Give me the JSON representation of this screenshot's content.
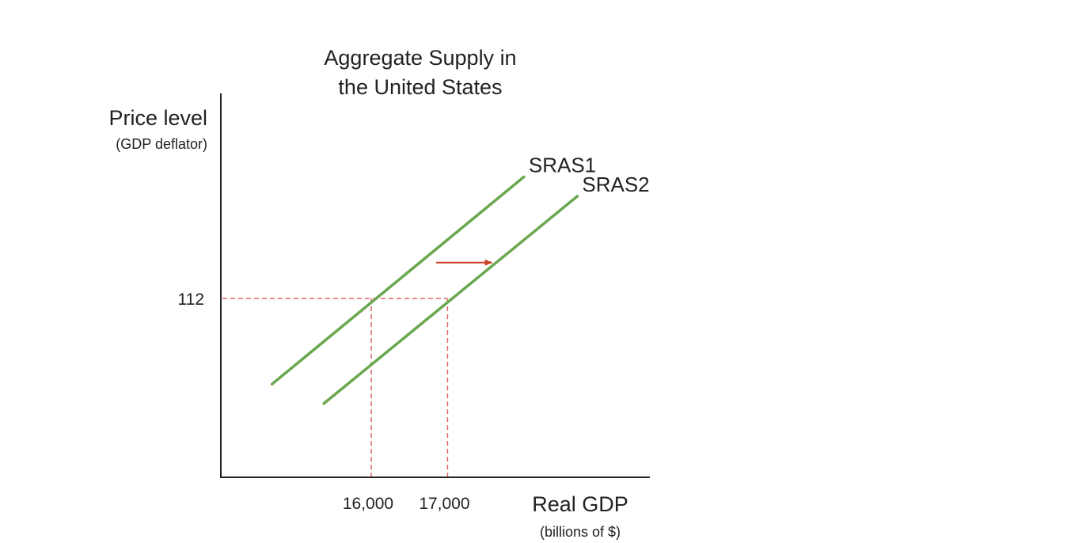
{
  "chart_data": {
    "type": "line",
    "title_lines": [
      "Aggregate Supply in",
      "the United States"
    ],
    "ylabel": "Price level",
    "ylabel_sub": "(GDP deflator)",
    "xlabel": "Real GDP",
    "xlabel_sub": "(billions of $)",
    "x_ticks": [
      "16,000",
      "17,000"
    ],
    "x_tick_values": [
      16000,
      17000
    ],
    "y_ticks": [
      "112"
    ],
    "y_tick_values": [
      112
    ],
    "series": [
      {
        "name": "SRAS1",
        "x": [
          14700,
          18000
        ],
        "y": [
          108.9,
          116.4
        ]
      },
      {
        "name": "SRAS2",
        "x": [
          15380,
          18700
        ],
        "y": [
          108.2,
          115.7
        ]
      }
    ],
    "reference_lines": {
      "horizontal": {
        "y": 112,
        "x_from": 14050,
        "x_to": 17000
      },
      "vertical": [
        {
          "x": 16000,
          "y_from": 105.5,
          "y_to": 112
        },
        {
          "x": 17000,
          "y_from": 105.5,
          "y_to": 112
        }
      ]
    },
    "shift_arrow": {
      "from": [
        16850,
        113.3
      ],
      "to": [
        17580,
        113.3
      ]
    },
    "xlim": [
      14030,
      19650
    ],
    "ylim": [
      105.5,
      116.7
    ],
    "colors": {
      "curve": "#6aa84f",
      "reference": "#e06666",
      "arrow": "#cc4125",
      "axis": "#222222"
    },
    "grid": false,
    "legend": "none"
  }
}
